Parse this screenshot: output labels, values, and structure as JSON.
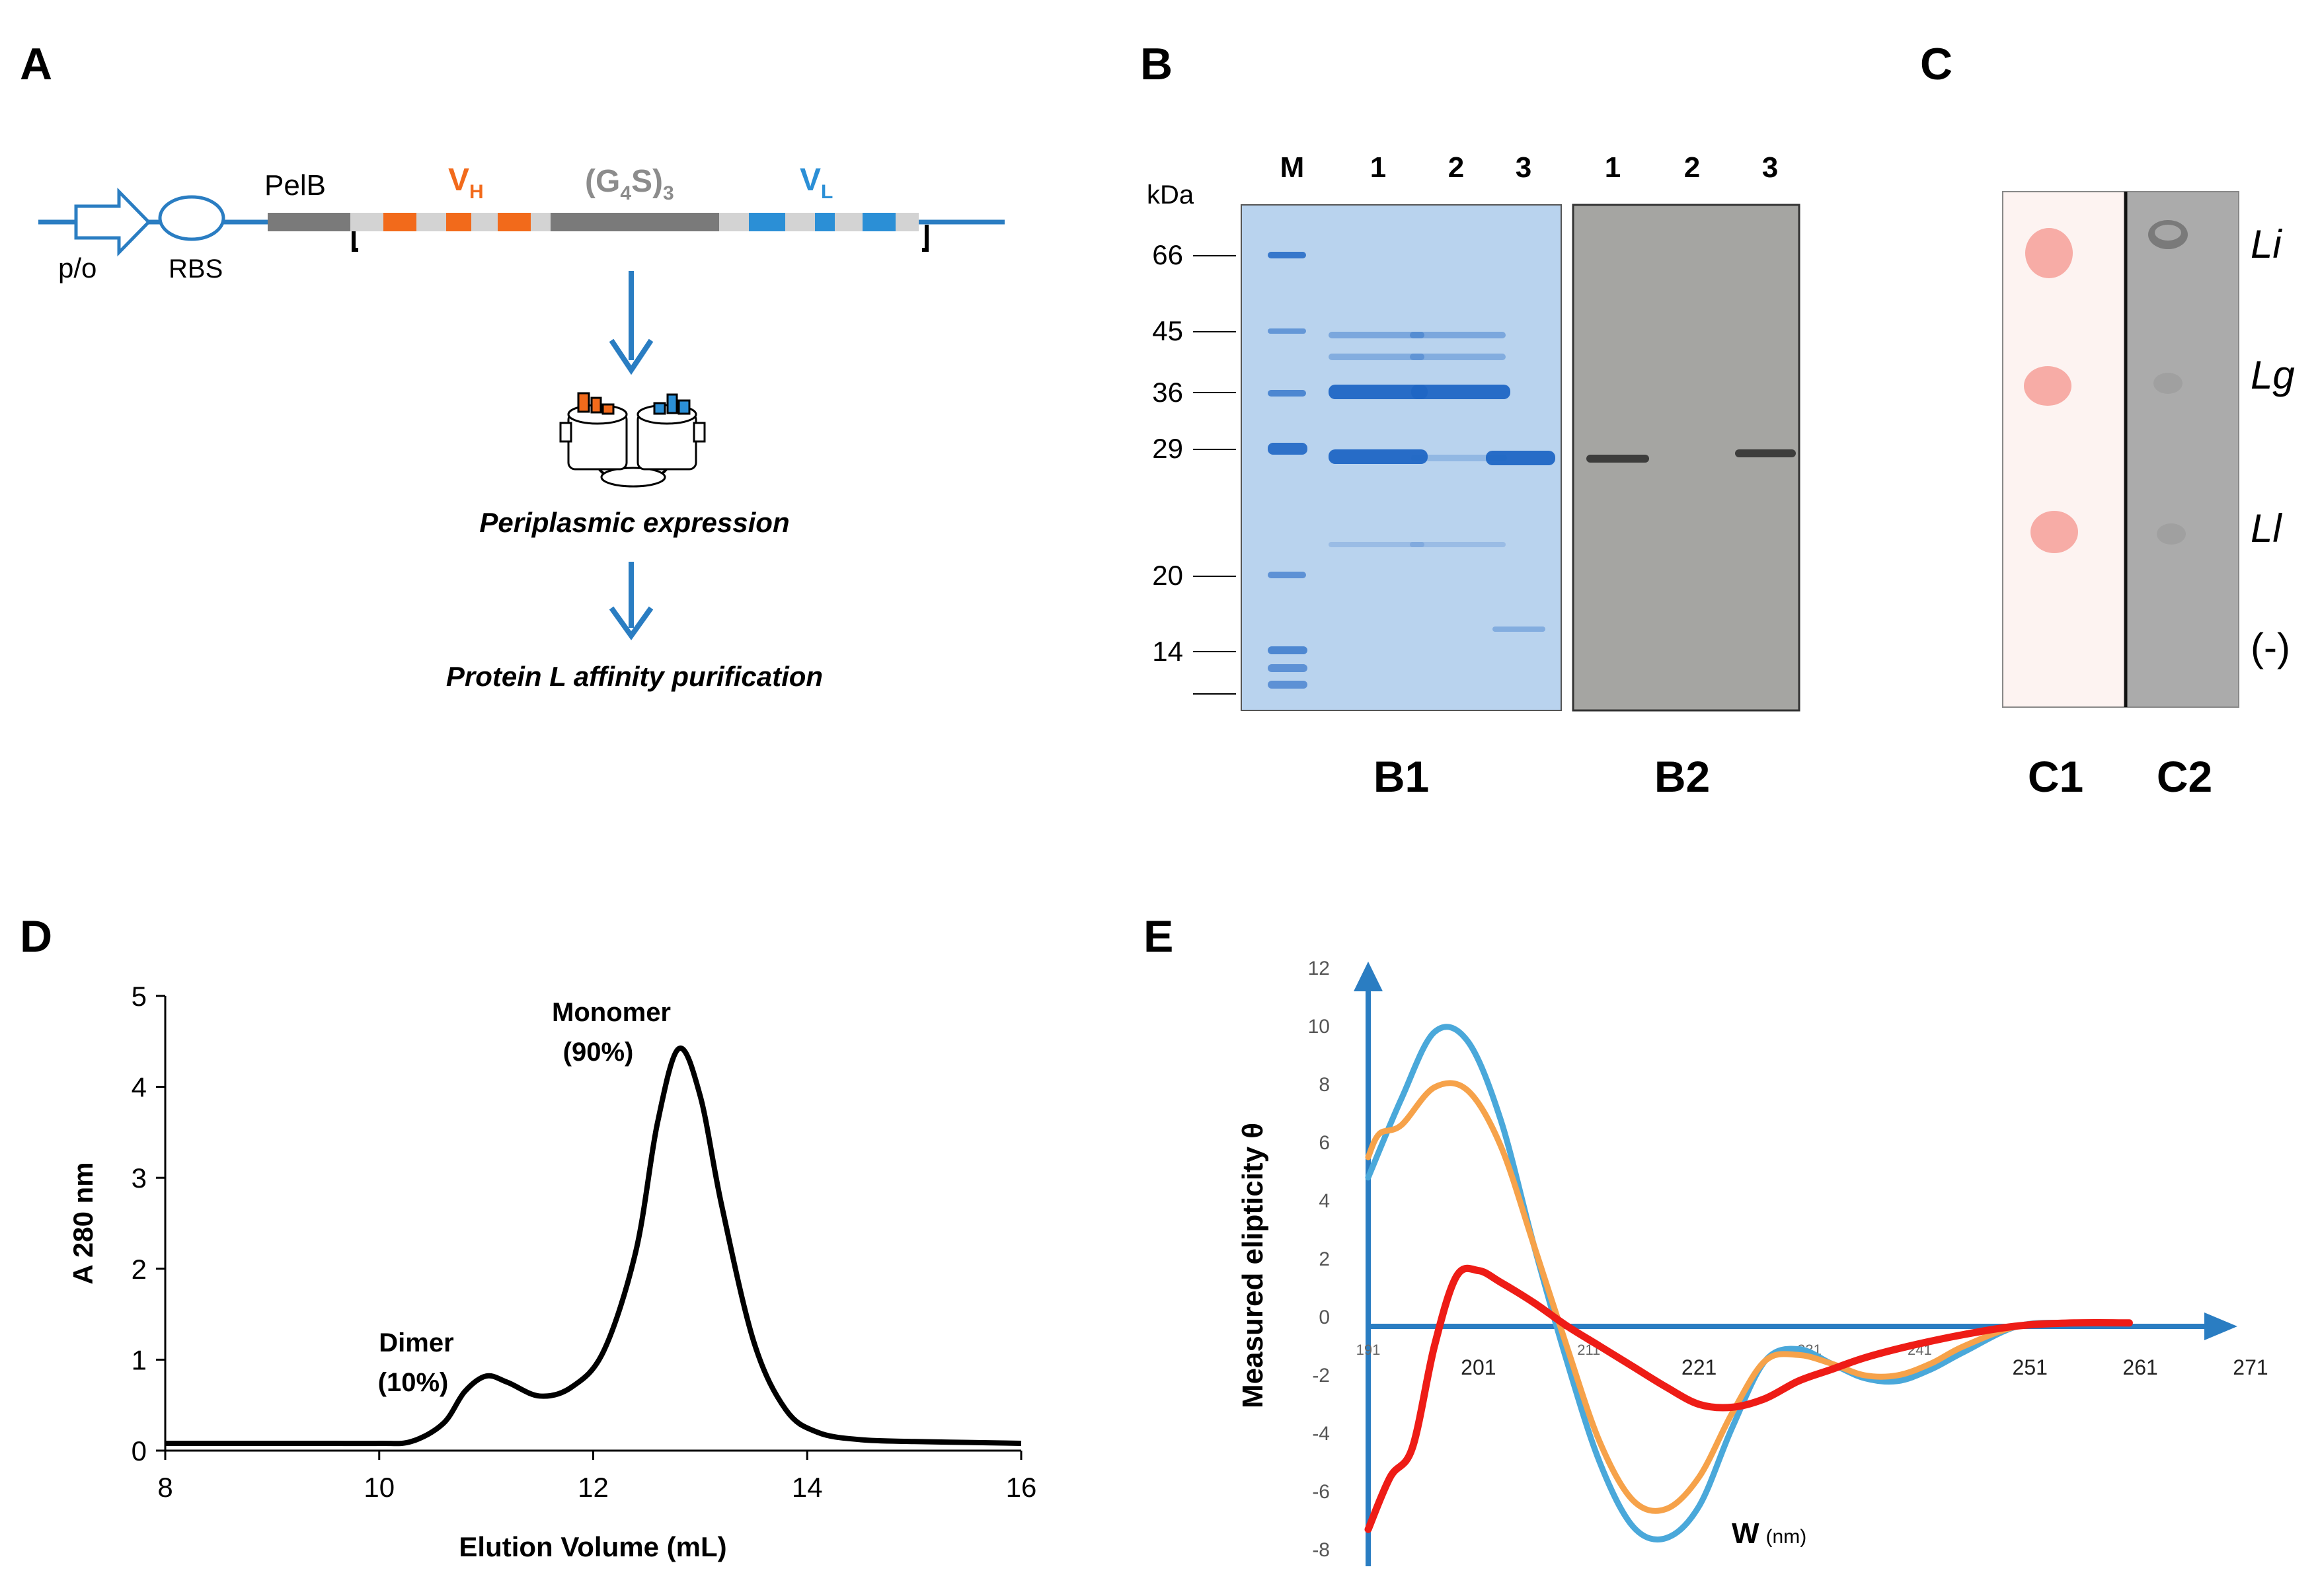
{
  "panels": {
    "a": {
      "letter": "A",
      "promoter": "p/o",
      "rbs": "RBS",
      "pelb": "PelB",
      "vh": "V",
      "vh_sub": "H",
      "linker": "(G",
      "linker_sub": "4",
      "linker_end": "S)",
      "linker_sub2": "3",
      "vl": "V",
      "vl_sub": "L",
      "step1": "Periplasmic expression",
      "step2": "Protein L affinity purification",
      "colors": {
        "backbone": "#2a7dc2",
        "vh": "#f26a1b",
        "vl": "#2b8fd6",
        "pelb": "#7a7a7a",
        "spacer": "#d3d3d3"
      }
    },
    "b": {
      "letter": "B",
      "kda": "kDa",
      "markers": [
        "66",
        "45",
        "36",
        "29",
        "20",
        "14"
      ],
      "lanes_b1": [
        "M",
        "1",
        "2",
        "3"
      ],
      "lanes_b2": [
        "1",
        "2",
        "3"
      ],
      "sub1": "B1",
      "sub2": "B2",
      "colors": {
        "gel_bg": "#b9d3ee",
        "band": "#1f66c4",
        "blot_bg": "#a5a5a2"
      }
    },
    "c": {
      "letter": "C",
      "spots": [
        "Li",
        "Lg",
        "Ll",
        "(-)"
      ],
      "sub1": "C1",
      "sub2": "C2",
      "colors": {
        "membrane1": "#fdf3f1",
        "spot": "#f59a94",
        "membrane2": "#ababab"
      }
    },
    "d": {
      "letter": "D",
      "dimer": "Dimer",
      "dimer_pct": "(10%)",
      "monomer": "Monomer",
      "monomer_pct": "(90%)"
    },
    "e": {
      "letter": "E",
      "w_label": "W",
      "w_unit": "(nm)"
    }
  },
  "chart_data": [
    {
      "type": "line",
      "title": "",
      "xlabel": "Elution Volume (mL)",
      "ylabel": "A 280 nm",
      "xlim": [
        8,
        16
      ],
      "ylim": [
        0,
        5
      ],
      "xticks": [
        "8",
        "10",
        "12",
        "14",
        "16"
      ],
      "yticks": [
        "0",
        "1",
        "2",
        "3",
        "4",
        "5"
      ],
      "series": [
        {
          "name": "A280",
          "color": "#000000",
          "x": [
            8,
            8.5,
            9,
            9.5,
            10,
            10.3,
            10.6,
            10.8,
            11.0,
            11.2,
            11.5,
            11.8,
            12.1,
            12.4,
            12.6,
            12.8,
            13.0,
            13.2,
            13.5,
            13.8,
            14.1,
            14.5,
            15,
            15.5,
            16
          ],
          "values": [
            0.08,
            0.08,
            0.08,
            0.08,
            0.08,
            0.1,
            0.3,
            0.65,
            0.82,
            0.75,
            0.6,
            0.7,
            1.1,
            2.2,
            3.6,
            4.42,
            3.9,
            2.7,
            1.2,
            0.45,
            0.2,
            0.12,
            0.1,
            0.09,
            0.08
          ]
        }
      ]
    },
    {
      "type": "line",
      "title": "",
      "xlabel": "W (nm)",
      "ylabel": "Measured elipticity θ",
      "xlim": [
        191,
        271
      ],
      "ylim": [
        -8,
        12
      ],
      "xticks": [
        "191",
        "201",
        "211",
        "221",
        "231",
        "241",
        "251",
        "261",
        "271"
      ],
      "yticks": [
        "12",
        "10",
        "8",
        "6",
        "4",
        "2",
        "0",
        "-2",
        "-4",
        "-6",
        "-8"
      ],
      "series": [
        {
          "name": "blue",
          "color": "#4aa8da",
          "x": [
            191,
            194,
            197,
            200,
            203,
            206,
            209,
            212,
            215,
            218,
            221,
            224,
            227,
            230,
            233,
            236,
            239,
            242,
            245,
            250,
            255,
            260
          ],
          "values": [
            4.8,
            7.5,
            9.8,
            9.5,
            6.8,
            2.5,
            -1.5,
            -5.0,
            -7.2,
            -7.6,
            -6.5,
            -3.8,
            -1.5,
            -1.1,
            -1.6,
            -2.1,
            -2.2,
            -1.8,
            -1.2,
            -0.3,
            -0.2,
            -0.2
          ]
        },
        {
          "name": "orange",
          "color": "#f6a24a",
          "x": [
            191,
            192,
            194,
            197,
            200,
            203,
            206,
            209,
            212,
            215,
            218,
            221,
            224,
            227,
            230,
            233,
            236,
            239,
            242,
            245,
            250,
            255,
            260
          ],
          "values": [
            5.5,
            6.3,
            6.6,
            7.9,
            7.8,
            5.9,
            2.5,
            -1.0,
            -4.3,
            -6.3,
            -6.6,
            -5.5,
            -3.3,
            -1.5,
            -1.3,
            -1.6,
            -2.0,
            -2.0,
            -1.6,
            -1.0,
            -0.3,
            -0.2,
            -0.2
          ]
        },
        {
          "name": "red",
          "color": "#ee1c16",
          "x": [
            191,
            193,
            195,
            197,
            199,
            201,
            203,
            206,
            209,
            212,
            215,
            218,
            221,
            224,
            227,
            230,
            233,
            236,
            240,
            245,
            250,
            255,
            260
          ],
          "values": [
            -7.3,
            -5.5,
            -4.5,
            -1.0,
            1.4,
            1.6,
            1.2,
            0.5,
            -0.3,
            -1.0,
            -1.7,
            -2.4,
            -3.0,
            -3.1,
            -2.8,
            -2.2,
            -1.8,
            -1.4,
            -1.0,
            -0.6,
            -0.3,
            -0.2,
            -0.2
          ]
        }
      ]
    }
  ]
}
